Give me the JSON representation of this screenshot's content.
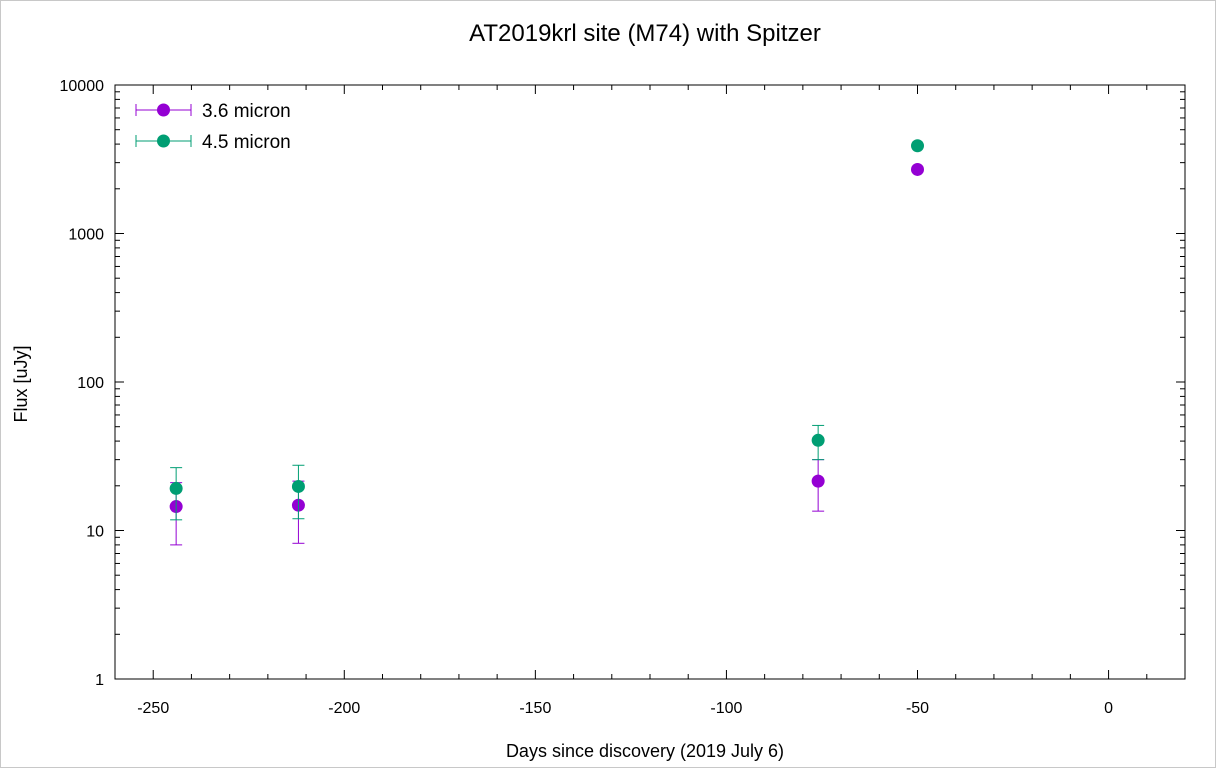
{
  "chart_data": {
    "type": "scatter",
    "title": "AT2019krl site (M74) with Spitzer",
    "xlabel": "Days since discovery (2019 July 6)",
    "ylabel": "Flux [uJy]",
    "xlim": [
      -260,
      20
    ],
    "ylim": [
      1,
      10000
    ],
    "yscale": "log",
    "x_ticks": [
      -250,
      -200,
      -150,
      -100,
      -50,
      0
    ],
    "x_tick_labels": [
      "-250",
      "-200",
      "-150",
      "-100",
      "-50",
      "0"
    ],
    "y_ticks": [
      1,
      10,
      100,
      1000,
      10000
    ],
    "y_tick_labels": [
      "1",
      "10",
      "100",
      "1000",
      "10000"
    ],
    "grid": false,
    "legend_position": "top-left",
    "series": [
      {
        "name": "3.6 micron",
        "color": "#9400d3",
        "points": [
          {
            "x": -244,
            "y": 14.5,
            "ylow": 8.0,
            "yhigh": 21.0
          },
          {
            "x": -212,
            "y": 14.8,
            "ylow": 8.2,
            "yhigh": 21.5
          },
          {
            "x": -76,
            "y": 21.5,
            "ylow": 13.5,
            "yhigh": 30.0
          },
          {
            "x": -50,
            "y": 2700
          }
        ]
      },
      {
        "name": "4.5 micron",
        "color": "#009e73",
        "points": [
          {
            "x": -244,
            "y": 19.2,
            "ylow": 11.8,
            "yhigh": 26.5
          },
          {
            "x": -212,
            "y": 19.8,
            "ylow": 12.0,
            "yhigh": 27.5
          },
          {
            "x": -76,
            "y": 40.5,
            "ylow": 30.0,
            "yhigh": 51.0
          },
          {
            "x": -50,
            "y": 3900
          }
        ]
      }
    ]
  }
}
